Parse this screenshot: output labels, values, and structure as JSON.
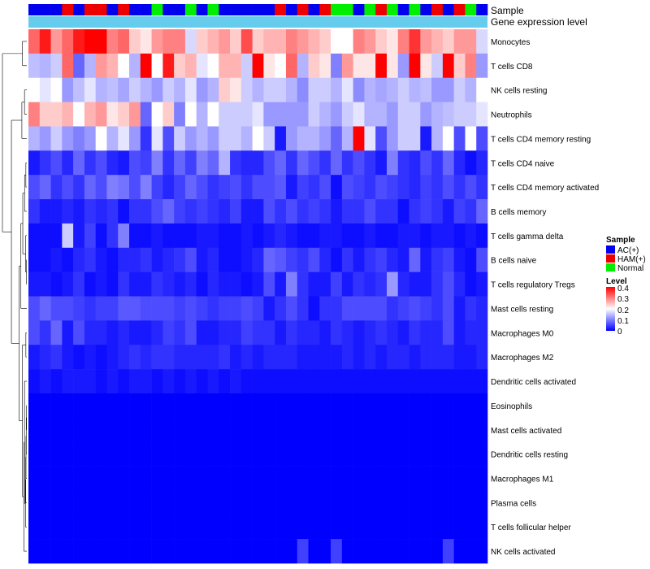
{
  "chart_data": {
    "type": "heatmap",
    "title": "",
    "annotation_labels": {
      "sample": "Sample",
      "gene_expression": "Gene expression level"
    },
    "sample_groups": [
      "AC(+)",
      "HAM(+)",
      "Normal"
    ],
    "sample_colors": {
      "AC(+)": "#0000ee",
      "HAM(+)": "#ee0000",
      "Normal": "#00ee00"
    },
    "gene_expression_bar_color": "#66ccee",
    "sample_annotation": [
      "AC(+)",
      "AC(+)",
      "AC(+)",
      "HAM(+)",
      "AC(+)",
      "HAM(+)",
      "HAM(+)",
      "AC(+)",
      "HAM(+)",
      "AC(+)",
      "AC(+)",
      "Normal",
      "AC(+)",
      "AC(+)",
      "Normal",
      "AC(+)",
      "Normal",
      "AC(+)",
      "AC(+)",
      "AC(+)",
      "AC(+)",
      "AC(+)",
      "HAM(+)",
      "AC(+)",
      "HAM(+)",
      "AC(+)",
      "HAM(+)",
      "Normal",
      "Normal",
      "AC(+)",
      "Normal",
      "HAM(+)",
      "Normal",
      "AC(+)",
      "Normal",
      "AC(+)",
      "HAM(+)",
      "AC(+)",
      "HAM(+)",
      "Normal",
      "AC(+)"
    ],
    "row_labels": [
      "Monocytes",
      "T cells CD8",
      "NK cells resting",
      "Neutrophils",
      "T cells CD4 memory resting",
      "T cells CD4 naive",
      "T cells CD4 memory activated",
      "B cells memory",
      "T cells gamma delta",
      "B cells naive",
      "T cells regulatory  Tregs",
      "Mast cells resting",
      "Macrophages M0",
      "Macrophages M2",
      "Dendritic cells activated",
      "Eosinophils",
      "Mast cells activated",
      "Dendritic cells resting",
      "Macrophages M1",
      "Plasma cells",
      "T cells follicular helper",
      "NK cells activated"
    ],
    "row_base_levels": [
      0.28,
      0.22,
      0.14,
      0.17,
      0.12,
      0.04,
      0.05,
      0.03,
      0.01,
      0.02,
      0.02,
      0.05,
      0.03,
      0.02,
      0.01,
      0,
      0,
      0,
      0,
      0,
      0,
      0.01
    ],
    "values": [
      [
        0.32,
        0.38,
        0.28,
        0.32,
        0.38,
        0.4,
        0.4,
        0.3,
        0.32,
        0.24,
        0.22,
        0.28,
        0.3,
        0.3,
        0.17,
        0.24,
        0.26,
        0.28,
        0.24,
        0.34,
        0.24,
        0.26,
        0.26,
        0.3,
        0.28,
        0.26,
        0.24,
        0.2,
        0.2,
        0.3,
        0.28,
        0.24,
        0.22,
        0.3,
        0.36,
        0.28,
        0.26,
        0.24,
        0.28,
        0.28,
        0.17
      ],
      [
        0.15,
        0.14,
        0.16,
        0.32,
        0.08,
        0.14,
        0.28,
        0.26,
        0.2,
        0.14,
        0.4,
        0.2,
        0.38,
        0.24,
        0.26,
        0.18,
        0.2,
        0.26,
        0.26,
        0.16,
        0.4,
        0.22,
        0.2,
        0.32,
        0.14,
        0.24,
        0.22,
        0.1,
        0.28,
        0.22,
        0.22,
        0.42,
        0.22,
        0.12,
        0.4,
        0.22,
        0.16,
        0.42,
        0.24,
        0.3,
        0.12
      ],
      [
        0.2,
        0.18,
        0.2,
        0.12,
        0.15,
        0.18,
        0.14,
        0.15,
        0.13,
        0.16,
        0.14,
        0.12,
        0.16,
        0.14,
        0.18,
        0.12,
        0.14,
        0.24,
        0.22,
        0.16,
        0.14,
        0.16,
        0.16,
        0.14,
        0.11,
        0.16,
        0.16,
        0.14,
        0.18,
        0.11,
        0.14,
        0.13,
        0.14,
        0.16,
        0.14,
        0.15,
        0.12,
        0.12,
        0.16,
        0.14,
        0.2
      ],
      [
        0.3,
        0.24,
        0.24,
        0.26,
        0.2,
        0.26,
        0.28,
        0.22,
        0.24,
        0.28,
        0.08,
        0.2,
        0.24,
        0.1,
        0.2,
        0.14,
        0.2,
        0.16,
        0.16,
        0.16,
        0.18,
        0.12,
        0.12,
        0.12,
        0.12,
        0.16,
        0.14,
        0.12,
        0.16,
        0.18,
        0.14,
        0.14,
        0.12,
        0.16,
        0.16,
        0.12,
        0.14,
        0.15,
        0.16,
        0.16,
        0.18
      ],
      [
        0.14,
        0.12,
        0.16,
        0.12,
        0.1,
        0.12,
        0.2,
        0.14,
        0.18,
        0.12,
        0.04,
        0.18,
        0.06,
        0.16,
        0.12,
        0.14,
        0.12,
        0.16,
        0.16,
        0.14,
        0.2,
        0.16,
        0.02,
        0.12,
        0.14,
        0.14,
        0.12,
        0.08,
        0.14,
        0.4,
        0.18,
        0.06,
        0.12,
        0.16,
        0.16,
        0.02,
        0.14,
        0.2,
        0.06,
        0.2,
        0.06
      ],
      [
        0.02,
        0.04,
        0.06,
        0.03,
        0.08,
        0.04,
        0.06,
        0.03,
        0.02,
        0.06,
        0.05,
        0.1,
        0.04,
        0.08,
        0.05,
        0.1,
        0.08,
        0.14,
        0.04,
        0.03,
        0.03,
        0.06,
        0.08,
        0.04,
        0.08,
        0.06,
        0.04,
        0.08,
        0.04,
        0.06,
        0.04,
        0.02,
        0.1,
        0.04,
        0.03,
        0.06,
        0.04,
        0.08,
        0.03,
        0.01,
        0.03
      ],
      [
        0.06,
        0.08,
        0.04,
        0.06,
        0.04,
        0.08,
        0.06,
        0.1,
        0.09,
        0.06,
        0.1,
        0.05,
        0.03,
        0.05,
        0.08,
        0.06,
        0.04,
        0.05,
        0.06,
        0.04,
        0.06,
        0.06,
        0.07,
        0.02,
        0.05,
        0.04,
        0.06,
        0.01,
        0.06,
        0.05,
        0.04,
        0.06,
        0.05,
        0.04,
        0.03,
        0.05,
        0.04,
        0.06,
        0.04,
        0.06,
        0.04
      ],
      [
        0.04,
        0.02,
        0.02,
        0.03,
        0.02,
        0.04,
        0.03,
        0.04,
        0.01,
        0.04,
        0.04,
        0.06,
        0.08,
        0.05,
        0.04,
        0.05,
        0.04,
        0.03,
        0.05,
        0.02,
        0.02,
        0.06,
        0.04,
        0.06,
        0.04,
        0.05,
        0.04,
        0.02,
        0.04,
        0.04,
        0.06,
        0.04,
        0.04,
        0.01,
        0.04,
        0.05,
        0.04,
        0.02,
        0.05,
        0.04,
        0.08
      ],
      [
        0.01,
        0.01,
        0.01,
        0.16,
        0.02,
        0.05,
        0.01,
        0.04,
        0.1,
        0.01,
        0.01,
        0.02,
        0.01,
        0.01,
        0.01,
        0.02,
        0.02,
        0.01,
        0.01,
        0.02,
        0.01,
        0.02,
        0.03,
        0.02,
        0.01,
        0.01,
        0.02,
        0.02,
        0.01,
        0.01,
        0.02,
        0.01,
        0.01,
        0.02,
        0.02,
        0.01,
        0.02,
        0.02,
        0.01,
        0.02,
        0.01
      ],
      [
        0.01,
        0.01,
        0.02,
        0.01,
        0.03,
        0.04,
        0.02,
        0.01,
        0.03,
        0.03,
        0.04,
        0.02,
        0.03,
        0.04,
        0.06,
        0.02,
        0.03,
        0.01,
        0.01,
        0.02,
        0.03,
        0.08,
        0.07,
        0.05,
        0.04,
        0.06,
        0.03,
        0.01,
        0.04,
        0.02,
        0.04,
        0.05,
        0.03,
        0.02,
        0.08,
        0.02,
        0.04,
        0.05,
        0.02,
        0.01,
        0.06
      ],
      [
        0.02,
        0.02,
        0.01,
        0.02,
        0.04,
        0.01,
        0.02,
        0.01,
        0.04,
        0.02,
        0.02,
        0.04,
        0.03,
        0.02,
        0.03,
        0.01,
        0.03,
        0.02,
        0.02,
        0.01,
        0.02,
        0.06,
        0.02,
        0.1,
        0.04,
        0.02,
        0.02,
        0.05,
        0.02,
        0.04,
        0.03,
        0.04,
        0.12,
        0.03,
        0.02,
        0.02,
        0.04,
        0.06,
        0.03,
        0.01,
        0.02
      ],
      [
        0.06,
        0.08,
        0.06,
        0.06,
        0.05,
        0.04,
        0.05,
        0.05,
        0.07,
        0.07,
        0.06,
        0.06,
        0.06,
        0.05,
        0.06,
        0.05,
        0.04,
        0.05,
        0.05,
        0.06,
        0.05,
        0.02,
        0.04,
        0.06,
        0.04,
        0.01,
        0.04,
        0.04,
        0.06,
        0.06,
        0.06,
        0.06,
        0.04,
        0.05,
        0.06,
        0.05,
        0.04,
        0.06,
        0.02,
        0.04,
        0.03
      ],
      [
        0.06,
        0.04,
        0.08,
        0.02,
        0.06,
        0.03,
        0.03,
        0.02,
        0.03,
        0.02,
        0.02,
        0.03,
        0.05,
        0.04,
        0.06,
        0.02,
        0.02,
        0.03,
        0.03,
        0.05,
        0.04,
        0.04,
        0.02,
        0.04,
        0.03,
        0.03,
        0.02,
        0.04,
        0.03,
        0.02,
        0.03,
        0.04,
        0.03,
        0.02,
        0.04,
        0.03,
        0.03,
        0.06,
        0.02,
        0.03,
        0.03
      ],
      [
        0.02,
        0.03,
        0.04,
        0.02,
        0.01,
        0.02,
        0.01,
        0.02,
        0.03,
        0.04,
        0.03,
        0.04,
        0.04,
        0.03,
        0.03,
        0.03,
        0.03,
        0.04,
        0.02,
        0.03,
        0.02,
        0.03,
        0.03,
        0.03,
        0.02,
        0.02,
        0.02,
        0.02,
        0.03,
        0.02,
        0.03,
        0.02,
        0.03,
        0.03,
        0.02,
        0.03,
        0.03,
        0.03,
        0.02,
        0.02,
        0.03
      ],
      [
        0.01,
        0.02,
        0.01,
        0.02,
        0.02,
        0.02,
        0.01,
        0.02,
        0.01,
        0.02,
        0.02,
        0.01,
        0.02,
        0.01,
        0.02,
        0.01,
        0.02,
        0.01,
        0.02,
        0.01,
        0.01,
        0.01,
        0.01,
        0.01,
        0.01,
        0.01,
        0.01,
        0.01,
        0.01,
        0.01,
        0.01,
        0.01,
        0.01,
        0.01,
        0.01,
        0.01,
        0.01,
        0.01,
        0.01,
        0.01,
        0.01
      ],
      [
        0,
        0,
        0,
        0,
        0,
        0,
        0,
        0,
        0,
        0,
        0,
        0,
        0,
        0,
        0,
        0,
        0,
        0,
        0,
        0,
        0,
        0,
        0,
        0,
        0,
        0,
        0,
        0,
        0,
        0,
        0,
        0,
        0,
        0,
        0,
        0,
        0,
        0,
        0,
        0,
        0
      ],
      [
        0,
        0,
        0,
        0,
        0,
        0,
        0,
        0,
        0,
        0,
        0,
        0,
        0,
        0,
        0,
        0,
        0,
        0,
        0,
        0,
        0,
        0,
        0,
        0,
        0,
        0,
        0,
        0,
        0,
        0,
        0,
        0,
        0,
        0,
        0,
        0,
        0,
        0,
        0,
        0,
        0
      ],
      [
        0,
        0,
        0,
        0,
        0,
        0,
        0,
        0,
        0,
        0,
        0,
        0,
        0,
        0,
        0,
        0,
        0,
        0,
        0,
        0,
        0,
        0,
        0,
        0,
        0,
        0,
        0,
        0,
        0,
        0,
        0,
        0,
        0,
        0,
        0,
        0,
        0,
        0,
        0,
        0,
        0
      ],
      [
        0,
        0,
        0,
        0,
        0,
        0,
        0,
        0,
        0,
        0,
        0,
        0,
        0,
        0,
        0,
        0,
        0,
        0,
        0,
        0,
        0,
        0,
        0,
        0,
        0,
        0,
        0,
        0,
        0,
        0,
        0,
        0,
        0,
        0,
        0,
        0,
        0,
        0,
        0,
        0,
        0
      ],
      [
        0,
        0,
        0,
        0,
        0,
        0,
        0,
        0,
        0,
        0,
        0,
        0,
        0,
        0,
        0,
        0,
        0,
        0,
        0,
        0,
        0,
        0,
        0,
        0,
        0,
        0,
        0,
        0,
        0,
        0,
        0,
        0,
        0,
        0,
        0,
        0,
        0,
        0,
        0,
        0,
        0
      ],
      [
        0,
        0,
        0,
        0,
        0,
        0,
        0,
        0,
        0,
        0,
        0,
        0,
        0,
        0,
        0,
        0,
        0,
        0,
        0,
        0,
        0,
        0,
        0,
        0,
        0,
        0,
        0,
        0,
        0,
        0,
        0,
        0,
        0,
        0,
        0,
        0,
        0,
        0,
        0,
        0,
        0
      ],
      [
        0,
        0,
        0,
        0,
        0,
        0,
        0,
        0,
        0,
        0,
        0,
        0,
        0,
        0,
        0,
        0,
        0,
        0,
        0,
        0,
        0,
        0,
        0,
        0,
        0.05,
        0,
        0,
        0.05,
        0,
        0,
        0,
        0,
        0,
        0,
        0,
        0,
        0,
        0.05,
        0,
        0,
        0
      ]
    ],
    "legend": {
      "sample_title": "Sample",
      "level_title": "Level",
      "level_ticks": [
        "0.4",
        "0.3",
        "0.2",
        "0.1",
        "0"
      ],
      "level_range": [
        0,
        0.4
      ]
    }
  }
}
